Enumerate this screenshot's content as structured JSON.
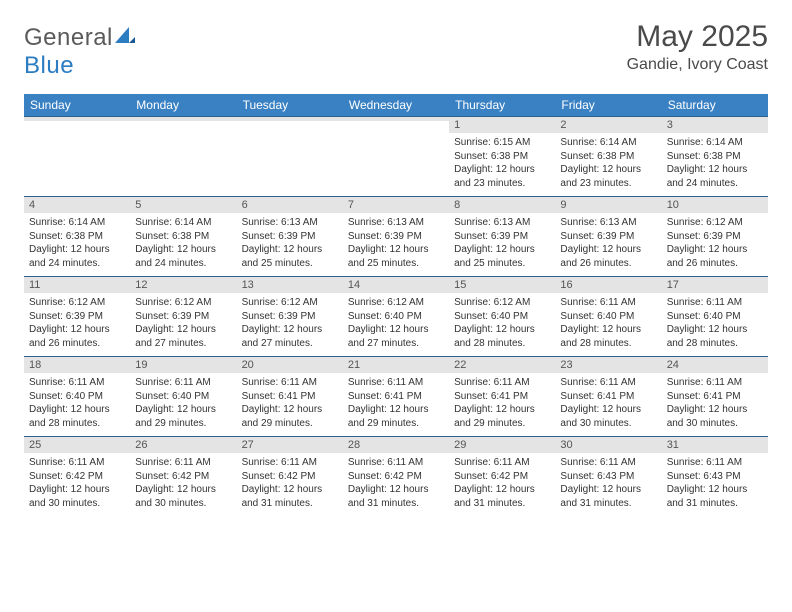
{
  "brand": {
    "part1": "General",
    "part2": "Blue"
  },
  "title": "May 2025",
  "location": "Gandie, Ivory Coast",
  "colors": {
    "header_bg": "#3a81c4",
    "header_text": "#ffffff",
    "daynum_bg": "#e4e4e4",
    "border": "#2b5f8f",
    "logo_gray": "#5a5a5a",
    "logo_blue": "#2b7cc0"
  },
  "typography": {
    "title_fontsize": 30,
    "location_fontsize": 16,
    "header_fontsize": 12,
    "daynum_fontsize": 11,
    "body_fontsize": 10
  },
  "layout": {
    "columns": 7,
    "rows": 5
  },
  "day_names": [
    "Sunday",
    "Monday",
    "Tuesday",
    "Wednesday",
    "Thursday",
    "Friday",
    "Saturday"
  ],
  "weeks": [
    [
      null,
      null,
      null,
      null,
      {
        "n": "1",
        "sr": "6:15 AM",
        "ss": "6:38 PM",
        "dl": "12 hours and 23 minutes."
      },
      {
        "n": "2",
        "sr": "6:14 AM",
        "ss": "6:38 PM",
        "dl": "12 hours and 23 minutes."
      },
      {
        "n": "3",
        "sr": "6:14 AM",
        "ss": "6:38 PM",
        "dl": "12 hours and 24 minutes."
      }
    ],
    [
      {
        "n": "4",
        "sr": "6:14 AM",
        "ss": "6:38 PM",
        "dl": "12 hours and 24 minutes."
      },
      {
        "n": "5",
        "sr": "6:14 AM",
        "ss": "6:38 PM",
        "dl": "12 hours and 24 minutes."
      },
      {
        "n": "6",
        "sr": "6:13 AM",
        "ss": "6:39 PM",
        "dl": "12 hours and 25 minutes."
      },
      {
        "n": "7",
        "sr": "6:13 AM",
        "ss": "6:39 PM",
        "dl": "12 hours and 25 minutes."
      },
      {
        "n": "8",
        "sr": "6:13 AM",
        "ss": "6:39 PM",
        "dl": "12 hours and 25 minutes."
      },
      {
        "n": "9",
        "sr": "6:13 AM",
        "ss": "6:39 PM",
        "dl": "12 hours and 26 minutes."
      },
      {
        "n": "10",
        "sr": "6:12 AM",
        "ss": "6:39 PM",
        "dl": "12 hours and 26 minutes."
      }
    ],
    [
      {
        "n": "11",
        "sr": "6:12 AM",
        "ss": "6:39 PM",
        "dl": "12 hours and 26 minutes."
      },
      {
        "n": "12",
        "sr": "6:12 AM",
        "ss": "6:39 PM",
        "dl": "12 hours and 27 minutes."
      },
      {
        "n": "13",
        "sr": "6:12 AM",
        "ss": "6:39 PM",
        "dl": "12 hours and 27 minutes."
      },
      {
        "n": "14",
        "sr": "6:12 AM",
        "ss": "6:40 PM",
        "dl": "12 hours and 27 minutes."
      },
      {
        "n": "15",
        "sr": "6:12 AM",
        "ss": "6:40 PM",
        "dl": "12 hours and 28 minutes."
      },
      {
        "n": "16",
        "sr": "6:11 AM",
        "ss": "6:40 PM",
        "dl": "12 hours and 28 minutes."
      },
      {
        "n": "17",
        "sr": "6:11 AM",
        "ss": "6:40 PM",
        "dl": "12 hours and 28 minutes."
      }
    ],
    [
      {
        "n": "18",
        "sr": "6:11 AM",
        "ss": "6:40 PM",
        "dl": "12 hours and 28 minutes."
      },
      {
        "n": "19",
        "sr": "6:11 AM",
        "ss": "6:40 PM",
        "dl": "12 hours and 29 minutes."
      },
      {
        "n": "20",
        "sr": "6:11 AM",
        "ss": "6:41 PM",
        "dl": "12 hours and 29 minutes."
      },
      {
        "n": "21",
        "sr": "6:11 AM",
        "ss": "6:41 PM",
        "dl": "12 hours and 29 minutes."
      },
      {
        "n": "22",
        "sr": "6:11 AM",
        "ss": "6:41 PM",
        "dl": "12 hours and 29 minutes."
      },
      {
        "n": "23",
        "sr": "6:11 AM",
        "ss": "6:41 PM",
        "dl": "12 hours and 30 minutes."
      },
      {
        "n": "24",
        "sr": "6:11 AM",
        "ss": "6:41 PM",
        "dl": "12 hours and 30 minutes."
      }
    ],
    [
      {
        "n": "25",
        "sr": "6:11 AM",
        "ss": "6:42 PM",
        "dl": "12 hours and 30 minutes."
      },
      {
        "n": "26",
        "sr": "6:11 AM",
        "ss": "6:42 PM",
        "dl": "12 hours and 30 minutes."
      },
      {
        "n": "27",
        "sr": "6:11 AM",
        "ss": "6:42 PM",
        "dl": "12 hours and 31 minutes."
      },
      {
        "n": "28",
        "sr": "6:11 AM",
        "ss": "6:42 PM",
        "dl": "12 hours and 31 minutes."
      },
      {
        "n": "29",
        "sr": "6:11 AM",
        "ss": "6:42 PM",
        "dl": "12 hours and 31 minutes."
      },
      {
        "n": "30",
        "sr": "6:11 AM",
        "ss": "6:43 PM",
        "dl": "12 hours and 31 minutes."
      },
      {
        "n": "31",
        "sr": "6:11 AM",
        "ss": "6:43 PM",
        "dl": "12 hours and 31 minutes."
      }
    ]
  ],
  "labels": {
    "sunrise": "Sunrise: ",
    "sunset": "Sunset: ",
    "daylight": "Daylight: "
  }
}
